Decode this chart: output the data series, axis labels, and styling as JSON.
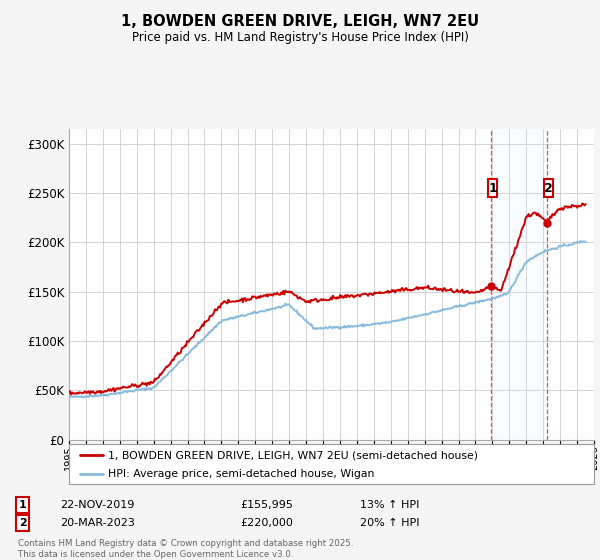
{
  "title": "1, BOWDEN GREEN DRIVE, LEIGH, WN7 2EU",
  "subtitle": "Price paid vs. HM Land Registry's House Price Index (HPI)",
  "ylabel_ticks": [
    "£0",
    "£50K",
    "£100K",
    "£150K",
    "£200K",
    "£250K",
    "£300K"
  ],
  "ytick_values": [
    0,
    50000,
    100000,
    150000,
    200000,
    250000,
    300000
  ],
  "ylim": [
    0,
    315000
  ],
  "xlim_start": 1995,
  "xlim_end": 2026,
  "background_color": "#f5f5f5",
  "plot_bg_color": "#ffffff",
  "line1_color": "#cc0000",
  "line2_color": "#88bbdd",
  "dashed_color": "#dd4444",
  "shade_color": "#ddeeff",
  "annotation1": {
    "num": "1",
    "x": 2019.9,
    "date": "22-NOV-2019",
    "price": "£155,995",
    "pct": "13% ↑ HPI"
  },
  "annotation2": {
    "num": "2",
    "x": 2023.2,
    "date": "20-MAR-2023",
    "price": "£220,000",
    "pct": "20% ↑ HPI"
  },
  "legend1": "1, BOWDEN GREEN DRIVE, LEIGH, WN7 2EU (semi-detached house)",
  "legend2": "HPI: Average price, semi-detached house, Wigan",
  "footer": "Contains HM Land Registry data © Crown copyright and database right 2025.\nThis data is licensed under the Open Government Licence v3.0.",
  "sale1_x": 2019.9,
  "sale1_y": 155995,
  "sale2_x": 2023.2,
  "sale2_y": 220000
}
